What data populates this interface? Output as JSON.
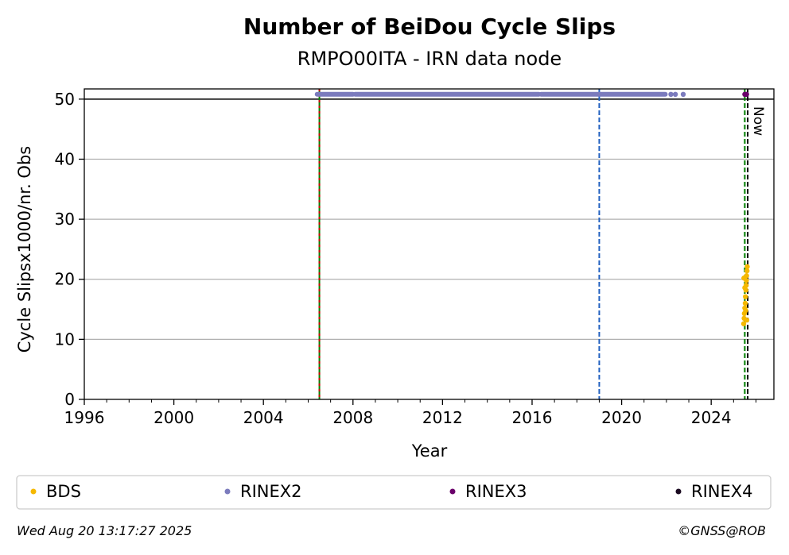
{
  "chart_data": {
    "type": "scatter",
    "title": "Number of BeiDou Cycle Slips",
    "subtitle": "RMPO00ITA - IRN data node",
    "xlabel": "Year",
    "ylabel": "Cycle Slipsx1000/nr. Obs",
    "xlim": [
      1996,
      2026.8
    ],
    "ylim": [
      0,
      51.7
    ],
    "xticks": [
      1996,
      2000,
      2004,
      2008,
      2012,
      2016,
      2020,
      2024
    ],
    "yticks": [
      0,
      10,
      20,
      30,
      40,
      50
    ],
    "grid": "horizontal",
    "cap_line": 50,
    "vlines": [
      {
        "x": 2006.5,
        "color": "#008000",
        "style": "dashed-red-green"
      },
      {
        "x": 2019.0,
        "color": "#1f5fbf",
        "style": "dashed"
      },
      {
        "x": 2025.5,
        "color": "#008000",
        "style": "dashed"
      },
      {
        "x": 2025.63,
        "color": "#000000",
        "style": "dashed",
        "label": "Now"
      }
    ],
    "series": [
      {
        "name": "BDS",
        "color": "#f5b800",
        "points": [
          [
            2025.45,
            12.6
          ],
          [
            2025.47,
            13.5
          ],
          [
            2025.48,
            14.3
          ],
          [
            2025.5,
            15.2
          ],
          [
            2025.52,
            16.0
          ],
          [
            2025.53,
            17.1
          ],
          [
            2025.55,
            18.2
          ],
          [
            2025.56,
            19.0
          ],
          [
            2025.57,
            19.8
          ],
          [
            2025.58,
            20.6
          ],
          [
            2025.6,
            21.4
          ],
          [
            2025.61,
            22.1
          ],
          [
            2025.46,
            20.2
          ],
          [
            2025.5,
            18.6
          ],
          [
            2025.54,
            14.8
          ],
          [
            2025.59,
            13.2
          ]
        ]
      },
      {
        "name": "RINEX2",
        "color": "#7b7bbd",
        "segments": [
          [
            2006.4,
            2008.0
          ],
          [
            2008.1,
            2016.3
          ],
          [
            2016.4,
            2021.95
          ]
        ],
        "points": [
          [
            2022.2,
            50.8
          ],
          [
            2022.4,
            50.8
          ],
          [
            2022.75,
            50.8
          ]
        ],
        "y": 50.8
      },
      {
        "name": "RINEX3",
        "color": "#6a006a",
        "points": [
          [
            2025.5,
            50.8
          ],
          [
            2025.58,
            50.8
          ]
        ]
      },
      {
        "name": "RINEX4",
        "color": "#1a0a20",
        "points": []
      }
    ],
    "legend": {
      "placement": "bottom"
    }
  },
  "footer": {
    "timestamp": "Wed Aug 20 13:17:27 2025",
    "credit": "©GNSS@ROB"
  }
}
